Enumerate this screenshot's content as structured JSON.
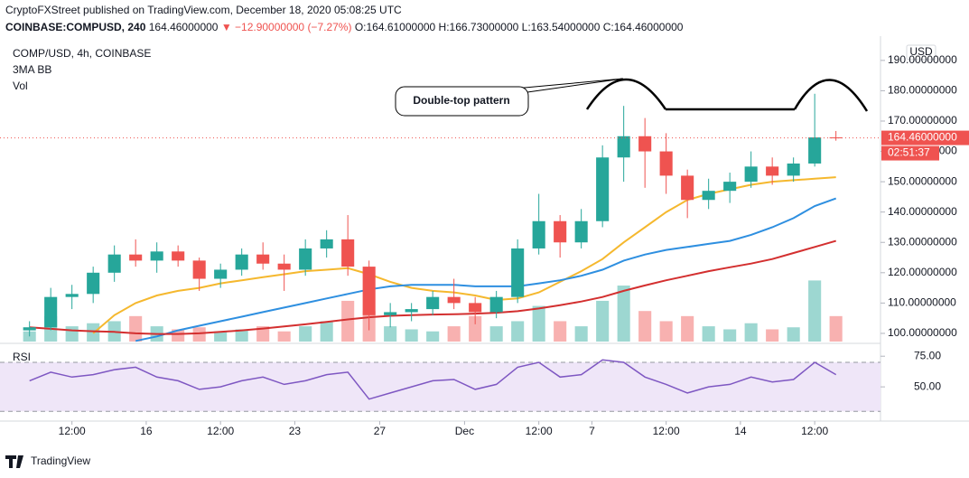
{
  "header": {
    "published": "CryptoFXStreet published on TradingView.com, December 18, 2020 05:08:25 UTC",
    "symbol": "COINBASE:COMPUSD, 240",
    "price": "164.46000000",
    "change": "▼ −12.90000000 (−7.27%)",
    "ohlc": "O:164.61000000 H:166.73000000 L:163.54000000 C:164.46000000",
    "logo": "TradingView"
  },
  "chart_data": [
    {
      "type": "candlestick",
      "title": "COMP/USD, 4h, COINBASE",
      "indicators": [
        "3MA BB",
        "Vol"
      ],
      "annotation": "Double-top pattern",
      "y_unit": "USD",
      "countdown": "02:51:37",
      "categories": [
        null,
        null,
        null,
        null,
        null,
        null,
        null,
        null,
        null,
        null,
        null,
        null,
        null,
        null,
        null,
        null,
        null,
        null,
        null,
        null,
        null,
        null,
        null,
        null,
        null,
        null,
        null,
        null,
        null,
        null,
        null,
        null,
        null,
        null,
        null,
        null,
        null,
        null,
        null
      ],
      "xlim": [
        -1.05,
        40.1
      ],
      "xticks": [
        {
          "value": 2,
          "label": "12:00"
        },
        {
          "value": 5.5,
          "label": "16"
        },
        {
          "value": 9,
          "label": "12:00"
        },
        {
          "value": 12.5,
          "label": "23"
        },
        {
          "value": 16.5,
          "label": "27"
        },
        {
          "value": 20.5,
          "label": "Dec"
        },
        {
          "value": 24,
          "label": "12:00"
        },
        {
          "value": 26.5,
          "label": "7"
        },
        {
          "value": 30,
          "label": "12:00"
        },
        {
          "value": 33.5,
          "label": "14"
        },
        {
          "value": 37,
          "label": "12:00"
        }
      ],
      "ylim": [
        97.3,
        198
      ],
      "yticks": [
        {
          "value": 100,
          "label": "100.00000000"
        },
        {
          "value": 110,
          "label": "110.00000000"
        },
        {
          "value": 120,
          "label": "120.00000000"
        },
        {
          "value": 130,
          "label": "130.00000000"
        },
        {
          "value": 140,
          "label": "140.00000000"
        },
        {
          "value": 150,
          "label": "150.00000000"
        },
        {
          "value": 160,
          "label": "160.00000000"
        },
        {
          "value": 170,
          "label": "170.00000000"
        },
        {
          "value": 180,
          "label": "180.00000000"
        },
        {
          "value": 190,
          "label": "190.00000000"
        }
      ],
      "open": [
        101,
        102,
        112,
        113,
        120,
        126,
        124,
        127,
        124,
        118,
        121,
        126,
        123,
        121,
        128,
        131,
        122,
        106,
        107,
        108,
        112,
        110,
        107,
        112,
        128,
        137,
        130,
        137,
        158,
        165,
        160,
        152,
        144,
        147,
        150,
        155,
        152,
        156,
        164.61
      ],
      "high": [
        104,
        115,
        116,
        122,
        129,
        131,
        130,
        129,
        125,
        123,
        128,
        130,
        126,
        131,
        134,
        139,
        124,
        110,
        110,
        114,
        118,
        112,
        114,
        131,
        146,
        139,
        141,
        162,
        175,
        171,
        166,
        154,
        151,
        153,
        160,
        158,
        158,
        179,
        166.73
      ],
      "low": [
        99,
        101,
        108,
        110,
        117,
        122,
        120,
        122,
        114,
        115,
        119,
        121,
        114,
        119,
        125,
        119,
        101,
        102,
        104,
        106,
        108,
        103,
        105,
        110,
        126,
        125,
        128,
        135,
        150,
        148,
        146,
        138,
        141,
        143,
        148,
        149,
        150,
        155,
        163.54
      ],
      "close": [
        102,
        112,
        113,
        120,
        126,
        124,
        127,
        124,
        118,
        121,
        126,
        123,
        121,
        128,
        131,
        122,
        106,
        107,
        108,
        112,
        110,
        107,
        112,
        128,
        137,
        130,
        137,
        158,
        165,
        160,
        152,
        144,
        147,
        150,
        155,
        152,
        156,
        164.61,
        164.46
      ],
      "up_color": "#26a69a",
      "down_color": "#ef5350",
      "ma_lines": [
        {
          "color": "#f5b82e",
          "values": [
            null,
            null,
            null,
            100,
            106,
            110,
            112.5,
            114,
            115,
            116.5,
            117.5,
            118.5,
            119.5,
            120.5,
            121,
            121.5,
            119.5,
            117,
            115,
            114,
            113.5,
            112.5,
            111,
            111.5,
            113.5,
            117,
            120.5,
            124.5,
            130,
            135,
            140,
            144,
            146,
            147.5,
            149,
            150,
            150.5,
            151,
            151.5
          ]
        },
        {
          "color": "#2e8fe0",
          "values": [
            null,
            null,
            null,
            null,
            null,
            97.5,
            99,
            101,
            102.5,
            104,
            105.5,
            107,
            108.5,
            110,
            111.5,
            113,
            114.5,
            115.5,
            116,
            116,
            116,
            115.5,
            115.5,
            115.5,
            116.5,
            117.5,
            119,
            121,
            124,
            126,
            127.5,
            128.5,
            129.5,
            130.5,
            132.5,
            135,
            138,
            142,
            144.5
          ]
        },
        {
          "color": "#d32f2f",
          "values": [
            102,
            101.5,
            101,
            100.7,
            100.5,
            100,
            99.8,
            99.8,
            100,
            100.5,
            101,
            101.6,
            102.3,
            103,
            103.8,
            104.6,
            105.3,
            105.8,
            106,
            106.2,
            106.3,
            106.5,
            106.8,
            107.3,
            108.2,
            109.3,
            110.5,
            112,
            114,
            115.8,
            117.5,
            119,
            120.5,
            121.8,
            123,
            124.5,
            126.5,
            128.5,
            130.5
          ]
        }
      ],
      "volume": {
        "ylim": [
          0,
          300
        ],
        "values": [
          10,
          25,
          15,
          18,
          20,
          25,
          15,
          12,
          14,
          10,
          12,
          15,
          10,
          15,
          20,
          40,
          30,
          15,
          12,
          10,
          15,
          25,
          15,
          20,
          35,
          20,
          15,
          40,
          55,
          30,
          20,
          25,
          15,
          12,
          18,
          12,
          14,
          60,
          25
        ]
      },
      "last_price": {
        "value": 164.46,
        "label": "164.46000000"
      }
    },
    {
      "type": "line",
      "title": "RSI",
      "color": "#7e57c2",
      "categories": [
        null,
        null,
        null,
        null,
        null,
        null,
        null,
        null,
        null,
        null,
        null,
        null,
        null,
        null,
        null,
        null,
        null,
        null,
        null,
        null,
        null,
        null,
        null,
        null,
        null,
        null,
        null,
        null,
        null,
        null,
        null,
        null,
        null,
        null,
        null,
        null,
        null,
        null,
        null
      ],
      "values": [
        55,
        62,
        58,
        60,
        64,
        66,
        58,
        55,
        48,
        50,
        55,
        58,
        52,
        55,
        60,
        62,
        40,
        45,
        50,
        55,
        56,
        48,
        52,
        66,
        70,
        58,
        60,
        72,
        70,
        58,
        52,
        45,
        50,
        52,
        58,
        54,
        56,
        70,
        60
      ],
      "ylim": [
        28,
        84
      ],
      "yticks": [
        {
          "value": 75,
          "label": "75.00"
        },
        {
          "value": 50,
          "label": "50.00"
        }
      ],
      "bands": [
        30,
        70
      ],
      "band_color": "#efe6f8"
    }
  ]
}
